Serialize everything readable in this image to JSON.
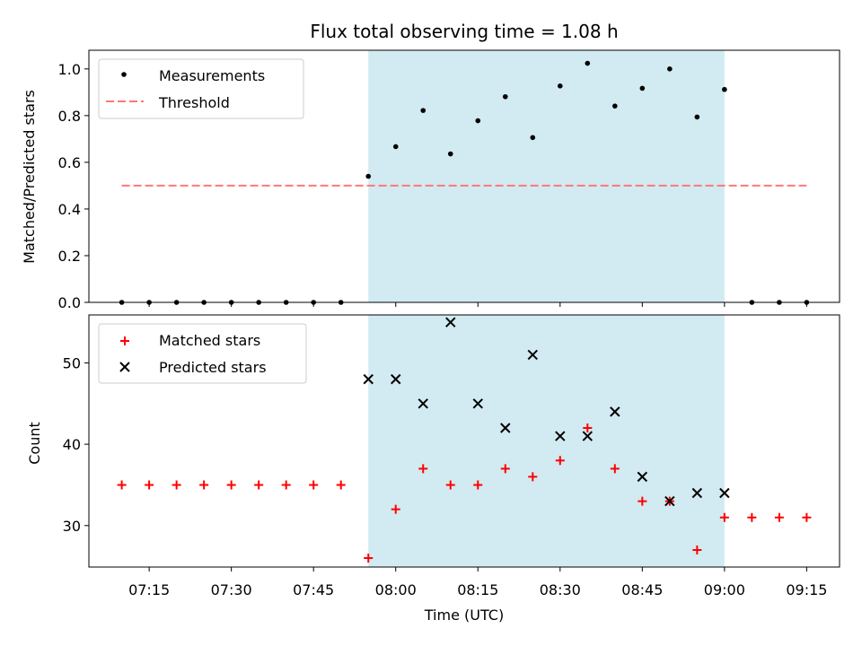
{
  "chart_data": {
    "title": "Flux total observing time = 1.08 h",
    "xlabel": "Time (UTC)",
    "x_ticks": [
      "07:15",
      "07:30",
      "07:45",
      "08:00",
      "08:15",
      "08:30",
      "08:45",
      "09:00",
      "09:15"
    ],
    "xlim": [
      "07:04",
      "09:21"
    ],
    "shaded_interval": {
      "start": "07:55",
      "end": "09:00",
      "color": "#add8e6"
    },
    "panels": [
      {
        "type": "scatter",
        "ylabel": "Matched/Predicted stars",
        "ylim": [
          0,
          1.08
        ],
        "y_ticks": [
          "0.0",
          "0.2",
          "0.4",
          "0.6",
          "0.8",
          "1.0"
        ],
        "legend_position": "top-left",
        "series": [
          {
            "name": "Measurements",
            "marker": "dot",
            "color": "#000000",
            "points": [
              {
                "x": "07:10",
                "y": 0.0
              },
              {
                "x": "07:15",
                "y": 0.0
              },
              {
                "x": "07:20",
                "y": 0.0
              },
              {
                "x": "07:25",
                "y": 0.0
              },
              {
                "x": "07:30",
                "y": 0.0
              },
              {
                "x": "07:35",
                "y": 0.0
              },
              {
                "x": "07:40",
                "y": 0.0
              },
              {
                "x": "07:45",
                "y": 0.0
              },
              {
                "x": "07:50",
                "y": 0.0
              },
              {
                "x": "07:55",
                "y": 0.54
              },
              {
                "x": "08:00",
                "y": 0.667
              },
              {
                "x": "08:05",
                "y": 0.822
              },
              {
                "x": "08:10",
                "y": 0.636
              },
              {
                "x": "08:15",
                "y": 0.778
              },
              {
                "x": "08:20",
                "y": 0.881
              },
              {
                "x": "08:25",
                "y": 0.706
              },
              {
                "x": "08:30",
                "y": 0.927
              },
              {
                "x": "08:35",
                "y": 1.024
              },
              {
                "x": "08:40",
                "y": 0.841
              },
              {
                "x": "08:45",
                "y": 0.917
              },
              {
                "x": "08:50",
                "y": 1.0
              },
              {
                "x": "08:55",
                "y": 0.794
              },
              {
                "x": "09:00",
                "y": 0.912
              },
              {
                "x": "09:05",
                "y": 0.0
              },
              {
                "x": "09:10",
                "y": 0.0
              },
              {
                "x": "09:15",
                "y": 0.0
              }
            ]
          },
          {
            "name": "Threshold",
            "marker": "dashed-line",
            "color": "#ff7777",
            "points": [
              {
                "x": "07:10",
                "y": 0.5
              },
              {
                "x": "09:15",
                "y": 0.5
              }
            ]
          }
        ]
      },
      {
        "type": "scatter",
        "ylabel": "Count",
        "ylim": [
          24.9,
          55.9
        ],
        "y_ticks": [
          "30",
          "40",
          "50"
        ],
        "legend_position": "top-left",
        "series": [
          {
            "name": "Matched stars",
            "marker": "plus",
            "color": "#ff0000",
            "points": [
              {
                "x": "07:10",
                "y": 35
              },
              {
                "x": "07:15",
                "y": 35
              },
              {
                "x": "07:20",
                "y": 35
              },
              {
                "x": "07:25",
                "y": 35
              },
              {
                "x": "07:30",
                "y": 35
              },
              {
                "x": "07:35",
                "y": 35
              },
              {
                "x": "07:40",
                "y": 35
              },
              {
                "x": "07:45",
                "y": 35
              },
              {
                "x": "07:50",
                "y": 35
              },
              {
                "x": "07:55",
                "y": 26
              },
              {
                "x": "08:00",
                "y": 32
              },
              {
                "x": "08:05",
                "y": 37
              },
              {
                "x": "08:10",
                "y": 35
              },
              {
                "x": "08:15",
                "y": 35
              },
              {
                "x": "08:20",
                "y": 37
              },
              {
                "x": "08:25",
                "y": 36
              },
              {
                "x": "08:30",
                "y": 38
              },
              {
                "x": "08:35",
                "y": 42
              },
              {
                "x": "08:40",
                "y": 37
              },
              {
                "x": "08:45",
                "y": 33
              },
              {
                "x": "08:50",
                "y": 33
              },
              {
                "x": "08:55",
                "y": 27
              },
              {
                "x": "09:00",
                "y": 31
              },
              {
                "x": "09:05",
                "y": 31
              },
              {
                "x": "09:10",
                "y": 31
              },
              {
                "x": "09:15",
                "y": 31
              }
            ]
          },
          {
            "name": "Predicted stars",
            "marker": "x",
            "color": "#000000",
            "points": [
              {
                "x": "07:55",
                "y": 48
              },
              {
                "x": "08:00",
                "y": 48
              },
              {
                "x": "08:05",
                "y": 45
              },
              {
                "x": "08:10",
                "y": 55
              },
              {
                "x": "08:15",
                "y": 45
              },
              {
                "x": "08:20",
                "y": 42
              },
              {
                "x": "08:25",
                "y": 51
              },
              {
                "x": "08:30",
                "y": 41
              },
              {
                "x": "08:35",
                "y": 41
              },
              {
                "x": "08:40",
                "y": 44
              },
              {
                "x": "08:45",
                "y": 36
              },
              {
                "x": "08:50",
                "y": 33
              },
              {
                "x": "08:55",
                "y": 34
              },
              {
                "x": "09:00",
                "y": 34
              }
            ]
          }
        ]
      }
    ]
  }
}
